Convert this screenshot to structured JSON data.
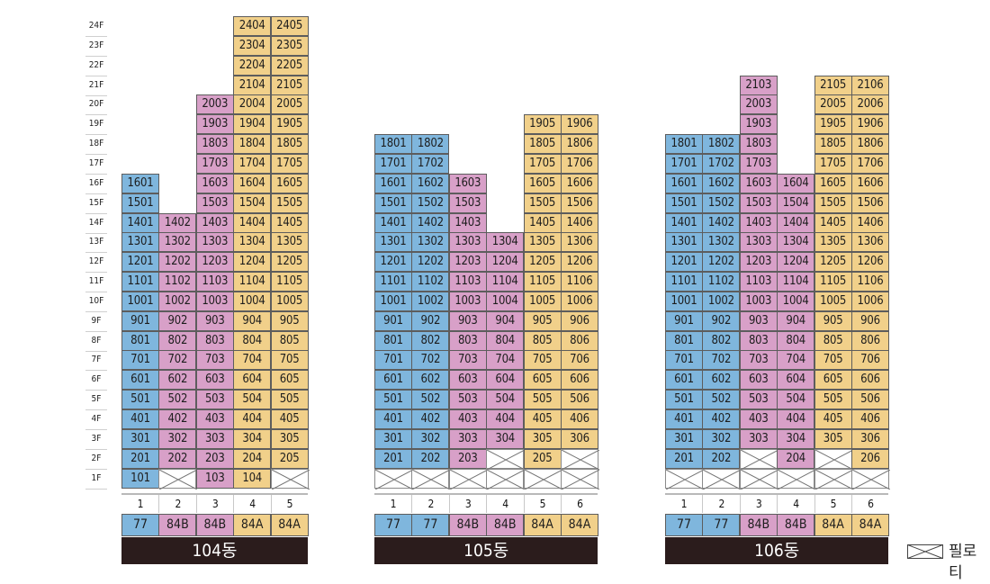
{
  "floors": [
    "24F",
    "23F",
    "22F",
    "21F",
    "20F",
    "19F",
    "18F",
    "17F",
    "16F",
    "15F",
    "14F",
    "13F",
    "12F",
    "11F",
    "10F",
    "9F",
    "8F",
    "7F",
    "6F",
    "5F",
    "4F",
    "3F",
    "2F",
    "1F"
  ],
  "colors": {
    "blue": "#7fb6dd",
    "pink": "#d8a0c8",
    "yellow": "#f1d08a"
  },
  "buildings": [
    {
      "name": "104동",
      "lines": [
        {
          "num": "1",
          "type": "77",
          "color": "blue",
          "top": 16,
          "piloti": [],
          "units": [
            "1601",
            "1501",
            "1401",
            "1301",
            "1201",
            "1101",
            "1001",
            "901",
            "801",
            "701",
            "601",
            "501",
            "401",
            "301",
            "201",
            "101"
          ]
        },
        {
          "num": "2",
          "type": "84B",
          "color": "pink",
          "top": 14,
          "piloti": [
            1
          ],
          "units": [
            "1402",
            "1302",
            "1202",
            "1102",
            "1002",
            "902",
            "802",
            "702",
            "602",
            "502",
            "402",
            "302",
            "202"
          ]
        },
        {
          "num": "3",
          "type": "84B",
          "color": "pink",
          "top": 20,
          "piloti": [],
          "units": [
            "2003",
            "1903",
            "1803",
            "1703",
            "1603",
            "1503",
            "1403",
            "1303",
            "1203",
            "1103",
            "1003",
            "903",
            "803",
            "703",
            "603",
            "503",
            "403",
            "303",
            "203",
            "103"
          ]
        },
        {
          "num": "4",
          "type": "84A",
          "color": "yellow",
          "top": 24,
          "piloti": [],
          "units": [
            "2404",
            "2304",
            "2204",
            "2104",
            "2004",
            "1904",
            "1804",
            "1704",
            "1604",
            "1504",
            "1404",
            "1304",
            "1204",
            "1104",
            "1004",
            "904",
            "804",
            "704",
            "604",
            "504",
            "404",
            "304",
            "204",
            "104"
          ]
        },
        {
          "num": "5",
          "type": "84A",
          "color": "yellow",
          "top": 24,
          "piloti": [
            1
          ],
          "units": [
            "2405",
            "2305",
            "2205",
            "2105",
            "2005",
            "1905",
            "1805",
            "1705",
            "1605",
            "1505",
            "1405",
            "1305",
            "1205",
            "1105",
            "1005",
            "905",
            "805",
            "705",
            "605",
            "505",
            "405",
            "305",
            "205"
          ]
        }
      ]
    },
    {
      "name": "105동",
      "lines": [
        {
          "num": "1",
          "type": "77",
          "color": "blue",
          "top": 18,
          "piloti": [
            1
          ],
          "units": [
            "1801",
            "1701",
            "1601",
            "1501",
            "1401",
            "1301",
            "1201",
            "1101",
            "1001",
            "901",
            "801",
            "701",
            "601",
            "501",
            "401",
            "301",
            "201"
          ]
        },
        {
          "num": "2",
          "type": "77",
          "color": "blue",
          "top": 18,
          "piloti": [
            1
          ],
          "units": [
            "1802",
            "1702",
            "1602",
            "1502",
            "1402",
            "1302",
            "1202",
            "1102",
            "1002",
            "902",
            "802",
            "702",
            "602",
            "502",
            "402",
            "302",
            "202"
          ]
        },
        {
          "num": "3",
          "type": "84B",
          "color": "pink",
          "top": 16,
          "piloti": [
            1
          ],
          "units": [
            "1603",
            "1503",
            "1403",
            "1303",
            "1203",
            "1103",
            "1003",
            "903",
            "803",
            "703",
            "603",
            "503",
            "403",
            "303",
            "203"
          ]
        },
        {
          "num": "4",
          "type": "84B",
          "color": "pink",
          "top": 13,
          "piloti": [
            2,
            1
          ],
          "units": [
            "1304",
            "1204",
            "1104",
            "1004",
            "904",
            "804",
            "704",
            "604",
            "504",
            "404",
            "304"
          ]
        },
        {
          "num": "5",
          "type": "84A",
          "color": "yellow",
          "top": 19,
          "piloti": [
            1
          ],
          "units": [
            "1905",
            "1805",
            "1705",
            "1605",
            "1505",
            "1405",
            "1305",
            "1205",
            "1105",
            "1005",
            "905",
            "805",
            "705",
            "605",
            "505",
            "405",
            "305",
            "205"
          ]
        },
        {
          "num": "6",
          "type": "84A",
          "color": "yellow",
          "top": 19,
          "piloti": [
            2,
            1
          ],
          "units": [
            "1906",
            "1806",
            "1706",
            "1606",
            "1506",
            "1406",
            "1306",
            "1206",
            "1106",
            "1006",
            "906",
            "806",
            "706",
            "606",
            "506",
            "406",
            "306"
          ]
        }
      ]
    },
    {
      "name": "106동",
      "lines": [
        {
          "num": "1",
          "type": "77",
          "color": "blue",
          "top": 18,
          "piloti": [
            1
          ],
          "units": [
            "1801",
            "1701",
            "1601",
            "1501",
            "1401",
            "1301",
            "1201",
            "1101",
            "1001",
            "901",
            "801",
            "701",
            "601",
            "501",
            "401",
            "301",
            "201"
          ]
        },
        {
          "num": "2",
          "type": "77",
          "color": "blue",
          "top": 18,
          "piloti": [
            1
          ],
          "units": [
            "1802",
            "1702",
            "1602",
            "1502",
            "1402",
            "1302",
            "1202",
            "1102",
            "1002",
            "902",
            "802",
            "702",
            "602",
            "502",
            "402",
            "302",
            "202"
          ]
        },
        {
          "num": "3",
          "type": "84B",
          "color": "pink",
          "top": 21,
          "piloti": [
            2,
            1
          ],
          "units": [
            "2103",
            "2003",
            "1903",
            "1803",
            "1703",
            "1603",
            "1503",
            "1403",
            "1303",
            "1203",
            "1103",
            "1003",
            "903",
            "803",
            "703",
            "603",
            "503",
            "403",
            "303"
          ]
        },
        {
          "num": "4",
          "type": "84B",
          "color": "pink",
          "top": 16,
          "piloti": [
            1
          ],
          "units": [
            "1604",
            "1504",
            "1404",
            "1304",
            "1204",
            "1104",
            "1004",
            "904",
            "804",
            "704",
            "604",
            "504",
            "404",
            "304",
            "204"
          ]
        },
        {
          "num": "5",
          "type": "84A",
          "color": "yellow",
          "top": 21,
          "piloti": [
            2,
            1
          ],
          "units": [
            "2105",
            "2005",
            "1905",
            "1805",
            "1705",
            "1605",
            "1505",
            "1405",
            "1305",
            "1205",
            "1105",
            "1005",
            "905",
            "805",
            "705",
            "605",
            "505",
            "405",
            "305"
          ]
        },
        {
          "num": "6",
          "type": "84A",
          "color": "yellow",
          "top": 21,
          "piloti": [
            1
          ],
          "units": [
            "2106",
            "2006",
            "1906",
            "1806",
            "1706",
            "1606",
            "1506",
            "1406",
            "1306",
            "1206",
            "1106",
            "1006",
            "906",
            "806",
            "706",
            "606",
            "506",
            "406",
            "306",
            "206"
          ]
        }
      ]
    }
  ],
  "legend": {
    "icon": "piloti-cross-icon",
    "label": "필로티"
  }
}
